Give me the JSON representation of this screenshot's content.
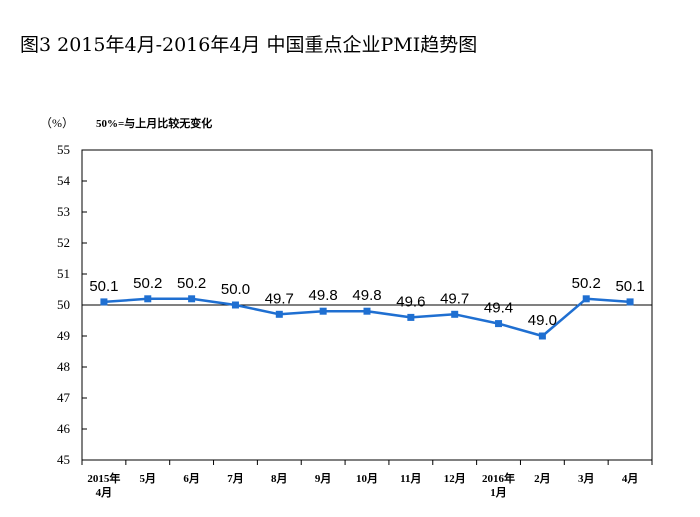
{
  "chart_data": {
    "type": "line",
    "title": "图3  2015年4月-2016年4月  中国重点企业PMI趋势图",
    "ylabel": "（%）",
    "note": "50%=与上月比较无变化",
    "xlabel": "",
    "categories": [
      [
        "2015年",
        "4月"
      ],
      [
        "5月"
      ],
      [
        "6月"
      ],
      [
        "7月"
      ],
      [
        "8月"
      ],
      [
        "9月"
      ],
      [
        "10月"
      ],
      [
        "11月"
      ],
      [
        "12月"
      ],
      [
        "2016年",
        "1月"
      ],
      [
        "2月"
      ],
      [
        "3月"
      ],
      [
        "4月"
      ]
    ],
    "series": [
      {
        "values": [
          50.1,
          50.2,
          50.2,
          50.0,
          49.7,
          49.8,
          49.8,
          49.6,
          49.7,
          49.4,
          49.0,
          50.2,
          50.1
        ],
        "labels": [
          "50.1",
          "50.2",
          "50.2",
          "50.0",
          "49.7",
          "49.8",
          "49.8",
          "49.6",
          "49.7",
          "49.4",
          "49.0",
          "50.2",
          "50.1"
        ],
        "color": "#1f6fd1"
      }
    ],
    "ylim": [
      45,
      55
    ],
    "yticks": [
      "45",
      "46",
      "47",
      "48",
      "49",
      "50",
      "51",
      "52",
      "53",
      "54",
      "55"
    ],
    "reference_line": 50,
    "grid": false,
    "legend": "none"
  }
}
